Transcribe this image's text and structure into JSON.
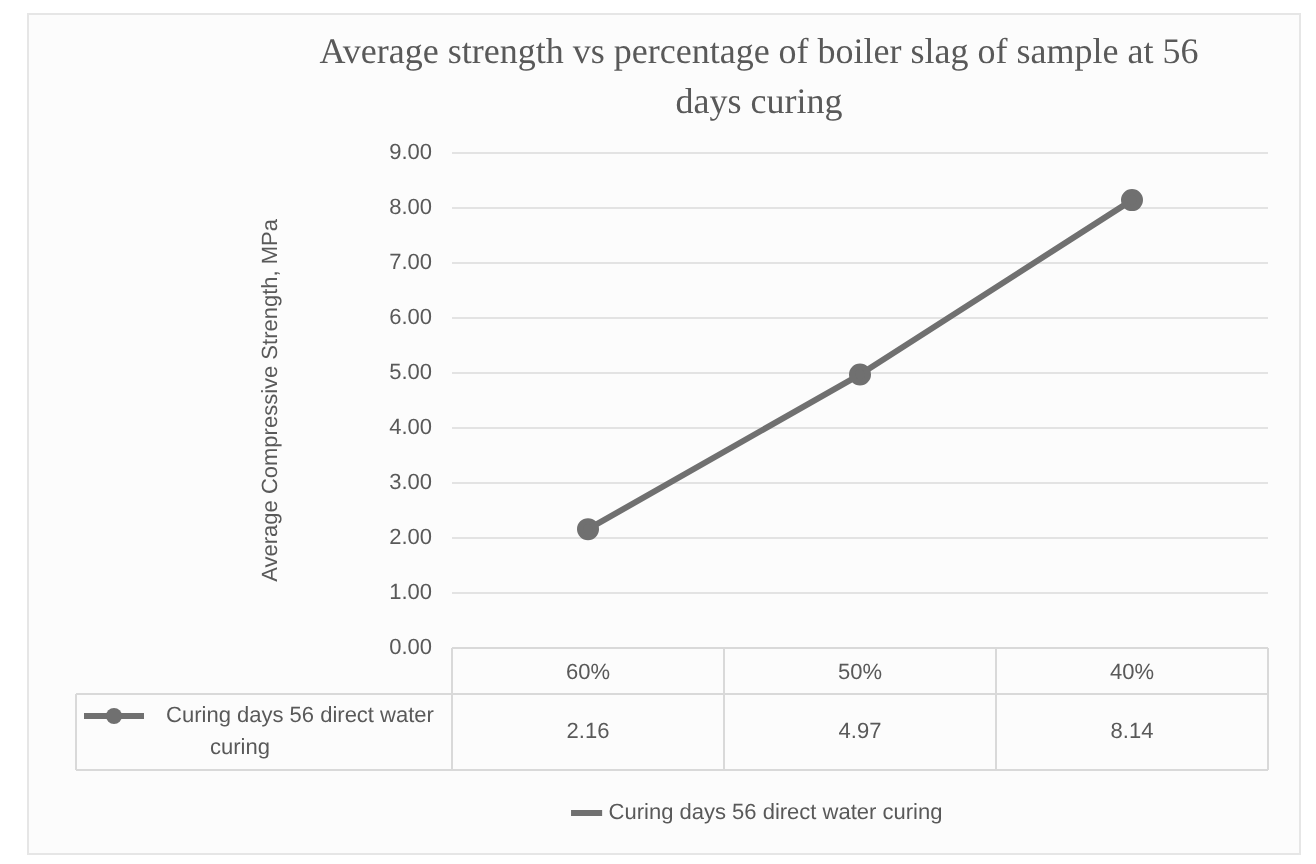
{
  "chart_data": {
    "type": "line",
    "title": "Average strength vs percentage of boiler slag of sample at 56 days curing",
    "ylabel": "Average Compressive Strength, MPa",
    "categories": [
      "60%",
      "50%",
      "40%"
    ],
    "series": [
      {
        "name": "Curing days 56 direct water curing",
        "color": "#707070",
        "values": [
          2.16,
          4.97,
          8.14
        ]
      }
    ],
    "ylim": [
      0,
      9
    ],
    "yticks": [
      {
        "value": 0,
        "label": "0.00"
      },
      {
        "value": 1,
        "label": "1.00"
      },
      {
        "value": 2,
        "label": "2.00"
      },
      {
        "value": 3,
        "label": "3.00"
      },
      {
        "value": 4,
        "label": "4.00"
      },
      {
        "value": 5,
        "label": "5.00"
      },
      {
        "value": 6,
        "label": "6.00"
      },
      {
        "value": 7,
        "label": "7.00"
      },
      {
        "value": 8,
        "label": "8.00"
      },
      {
        "value": 9,
        "label": "9.00"
      }
    ],
    "grid": "y",
    "legend": "bottom",
    "marker": "circle",
    "line_style": "solid",
    "data_labels": true
  }
}
